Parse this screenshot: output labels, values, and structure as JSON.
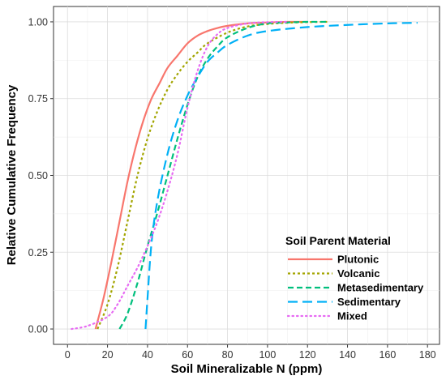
{
  "chart_data": {
    "type": "line",
    "xlabel": "Soil Mineralizable N (ppm)",
    "ylabel": "Relative Cumulative Frequency",
    "xlim": [
      -7,
      186
    ],
    "ylim": [
      -0.05,
      1.05
    ],
    "x_ticks": [
      0,
      20,
      40,
      60,
      80,
      100,
      120,
      140,
      160,
      180
    ],
    "y_ticks": [
      0,
      0.25,
      0.5,
      0.75,
      1.0
    ],
    "x_tick_labels": [
      "0",
      "20",
      "40",
      "60",
      "80",
      "100",
      "120",
      "140",
      "160",
      "180"
    ],
    "y_tick_labels": [
      "0.00",
      "0.25",
      "0.50",
      "0.75",
      "1.00"
    ],
    "grid": true,
    "legend": {
      "title": "Soil  Parent  Material",
      "position": "bottom-right"
    },
    "series": [
      {
        "name": "Plutonic",
        "color": "#f8766d",
        "style": "solid",
        "x": [
          14,
          18,
          22,
          26,
          30,
          34,
          38,
          42,
          46,
          50,
          55,
          60,
          65,
          70,
          75,
          80,
          90,
          100,
          110,
          120
        ],
        "y": [
          0.0,
          0.1,
          0.22,
          0.35,
          0.48,
          0.59,
          0.68,
          0.75,
          0.8,
          0.85,
          0.89,
          0.93,
          0.955,
          0.97,
          0.98,
          0.987,
          0.995,
          0.998,
          1.0,
          1.0
        ]
      },
      {
        "name": "Volcanic",
        "color": "#a3a500",
        "style": "dotted",
        "x": [
          15,
          20,
          25,
          30,
          35,
          40,
          45,
          50,
          55,
          60,
          65,
          70,
          80,
          90,
          100,
          110,
          120,
          130
        ],
        "y": [
          0.0,
          0.08,
          0.2,
          0.35,
          0.5,
          0.62,
          0.71,
          0.78,
          0.83,
          0.87,
          0.9,
          0.93,
          0.965,
          0.985,
          0.993,
          0.997,
          0.999,
          1.0
        ]
      },
      {
        "name": "Metasedimentary",
        "color": "#00bf7d",
        "style": "dashed",
        "x": [
          26,
          30,
          35,
          40,
          45,
          50,
          55,
          60,
          65,
          70,
          75,
          80,
          90,
          100,
          110,
          120,
          130
        ],
        "y": [
          0.0,
          0.05,
          0.15,
          0.27,
          0.38,
          0.5,
          0.62,
          0.73,
          0.82,
          0.88,
          0.92,
          0.95,
          0.98,
          0.995,
          0.998,
          1.0,
          1.0
        ]
      },
      {
        "name": "Sedimentary",
        "color": "#00b0f6",
        "style": "longdash",
        "x": [
          39,
          40,
          42,
          45,
          50,
          55,
          60,
          65,
          70,
          75,
          80,
          90,
          100,
          120,
          140,
          160,
          175
        ],
        "y": [
          0.0,
          0.1,
          0.28,
          0.42,
          0.57,
          0.68,
          0.76,
          0.82,
          0.87,
          0.9,
          0.925,
          0.955,
          0.97,
          0.983,
          0.99,
          0.995,
          0.997
        ]
      },
      {
        "name": "Mixed",
        "color": "#e76bf3",
        "style": "dotted-fine",
        "x": [
          2,
          10,
          20,
          25,
          30,
          35,
          40,
          45,
          50,
          55,
          60,
          65,
          70,
          75,
          80,
          90,
          100,
          110
        ],
        "y": [
          0.0,
          0.01,
          0.04,
          0.08,
          0.14,
          0.2,
          0.27,
          0.35,
          0.45,
          0.57,
          0.72,
          0.84,
          0.92,
          0.96,
          0.98,
          0.995,
          0.999,
          1.0
        ]
      }
    ]
  }
}
